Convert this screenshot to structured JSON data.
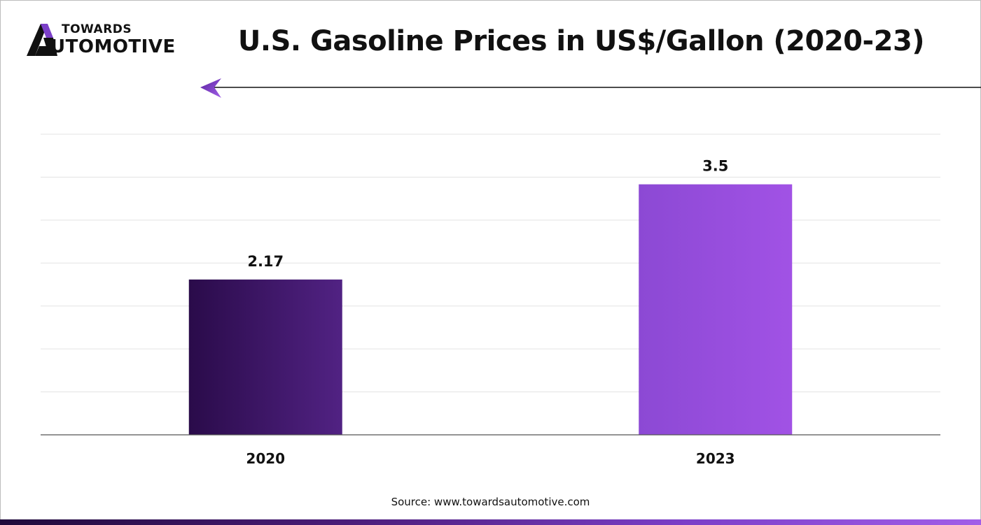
{
  "brand": {
    "line1": "TOWARDS",
    "line2": "UTOMOTIVE",
    "accent": "#7b3fc8"
  },
  "title": "U.S. Gasoline Prices in US$/Gallon (2020-23)",
  "source": "Source: www.towardsautomotive.com",
  "chart_data": {
    "type": "bar",
    "title": "U.S. Gasoline Prices in US$/Gallon (2020-23)",
    "categories": [
      "2020",
      "2023"
    ],
    "values": [
      2.17,
      3.5
    ],
    "data_labels": [
      "2.17",
      "3.5"
    ],
    "ylim": [
      0,
      4.2
    ],
    "gridlines": true,
    "y_axis_labels_shown": false,
    "colors": [
      {
        "from": "#2a0b4a",
        "to": "#512283"
      },
      {
        "from": "#8c49d4",
        "to": "#a152e5"
      }
    ]
  }
}
